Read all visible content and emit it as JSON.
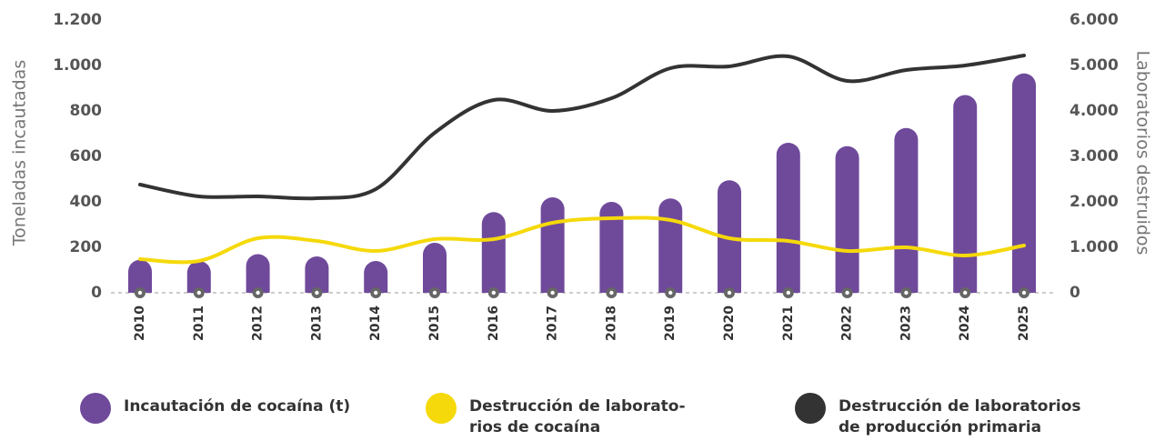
{
  "chart_data": {
    "type": "bar",
    "y_label": "Toneladas incautadas",
    "y2_label": "Laboratorios destruidos",
    "categories": [
      "2010",
      "2011",
      "2012",
      "2013",
      "2014",
      "2015",
      "2016",
      "2017",
      "2018",
      "2019",
      "2020",
      "2021",
      "2022",
      "2023",
      "2024",
      "2025"
    ],
    "ylim": [
      0,
      1200
    ],
    "yticks": [
      0,
      200,
      400,
      600,
      800,
      {
        "value": 1000,
        "label": "1.000"
      },
      {
        "value": 1200,
        "label": "1.200"
      }
    ],
    "y2lim": [
      0,
      6000
    ],
    "y2ticks": [
      0,
      {
        "value": 1000,
        "label": "1.000"
      },
      {
        "value": 2000,
        "label": "2.000"
      },
      {
        "value": 3000,
        "label": "3.000"
      },
      {
        "value": 4000,
        "label": "4.000"
      },
      {
        "value": 5000,
        "label": "5.000"
      },
      {
        "value": 6000,
        "label": "6.000"
      }
    ],
    "series": [
      {
        "name": "Incautación de cocaína (t)",
        "color": "#6f4a9b",
        "type": "bar",
        "values": [
          145,
          140,
          170,
          160,
          140,
          220,
          355,
          420,
          400,
          415,
          495,
          660,
          645,
          725,
          870,
          965
        ]
      },
      {
        "name": "Destrucción de laborato-\nrios de cocaína",
        "color": "#f5d90a",
        "type": "line",
        "axis": "y2",
        "values": [
          740,
          700,
          1200,
          1140,
          920,
          1180,
          1180,
          1540,
          1640,
          1600,
          1200,
          1140,
          920,
          1000,
          820,
          1040
        ]
      },
      {
        "name": "Destrucción de laboratorios\nde producción primaria",
        "color": "#333333",
        "type": "line",
        "axis": "y2",
        "values": [
          2380,
          2120,
          2120,
          2080,
          2280,
          3520,
          4240,
          4000,
          4280,
          4940,
          4980,
          5200,
          4660,
          4900,
          5000,
          5220
        ]
      }
    ]
  }
}
